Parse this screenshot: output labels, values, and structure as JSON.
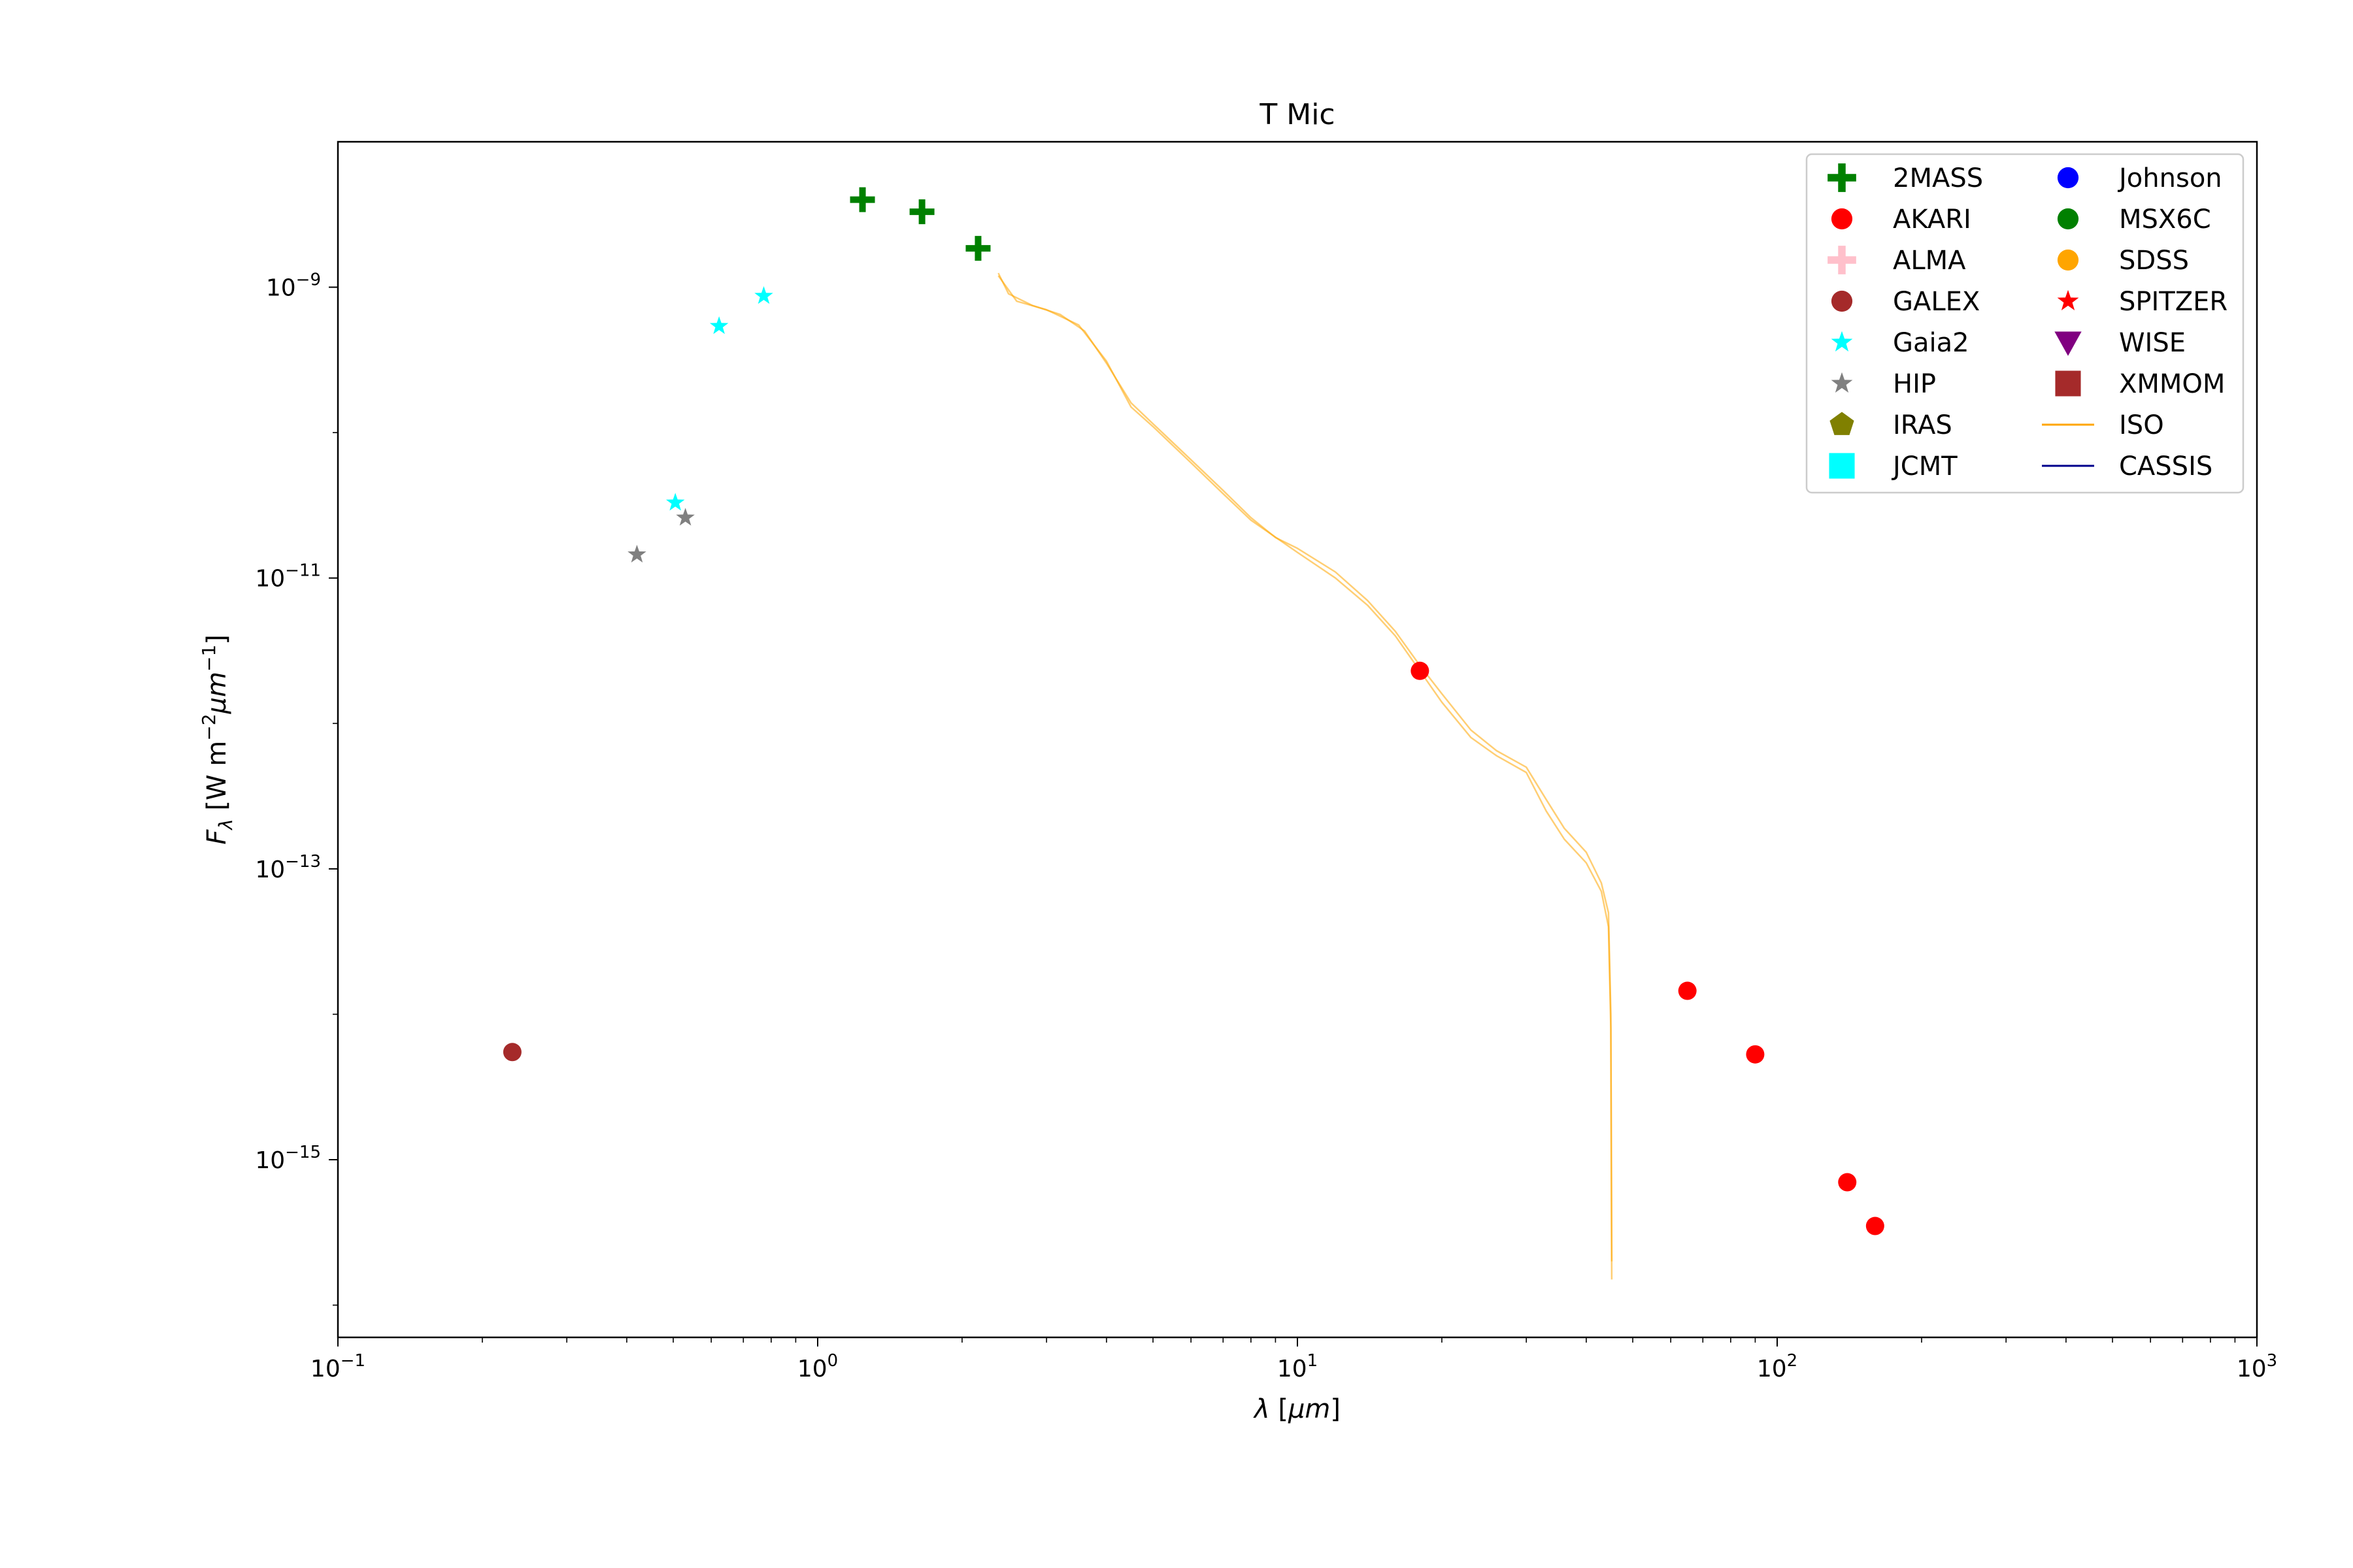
{
  "chart_data": {
    "type": "scatter",
    "title": "T Mic",
    "xlabel": "λ [μm]",
    "ylabel": "F_λ [W m^-2 μm^-1]",
    "xscale": "log",
    "yscale": "log",
    "xlim": [
      0.1,
      1000
    ],
    "ylim": [
      6e-17,
      1e-08
    ],
    "x_ticks": [
      {
        "value": 0.1,
        "base": "10",
        "exp": "−1"
      },
      {
        "value": 1,
        "base": "10",
        "exp": "0"
      },
      {
        "value": 10,
        "base": "10",
        "exp": "1"
      },
      {
        "value": 100,
        "base": "10",
        "exp": "2"
      },
      {
        "value": 1000,
        "base": "10",
        "exp": "3"
      }
    ],
    "y_ticks": [
      {
        "value": 1e-09,
        "base": "10",
        "exp": "−9"
      },
      {
        "value": 1e-11,
        "base": "10",
        "exp": "−11"
      },
      {
        "value": 1e-13,
        "base": "10",
        "exp": "−13"
      },
      {
        "value": 1e-15,
        "base": "10",
        "exp": "−15"
      }
    ],
    "grid": false,
    "legend_position": "top-right",
    "legend_columns": 2,
    "series": [
      {
        "name": "2MASS",
        "marker": "plus",
        "color": "#008000",
        "points": [
          [
            1.24,
            4e-09
          ],
          [
            1.65,
            3.3e-09
          ],
          [
            2.16,
            1.85e-09
          ]
        ]
      },
      {
        "name": "AKARI",
        "marker": "circle",
        "color": "#ff0000",
        "points": [
          [
            18,
            2.3e-12
          ],
          [
            65,
            1.45e-14
          ],
          [
            90,
            5.3e-15
          ],
          [
            140,
            7e-16
          ],
          [
            160,
            3.5e-16
          ]
        ]
      },
      {
        "name": "ALMA",
        "marker": "plus",
        "color": "#ffc0cb",
        "points": []
      },
      {
        "name": "GALEX",
        "marker": "circle",
        "color": "#a52a2a",
        "points": [
          [
            0.231,
            5.5e-15
          ]
        ]
      },
      {
        "name": "Gaia2",
        "marker": "star",
        "color": "#00ffff",
        "points": [
          [
            0.505,
            3.3e-11
          ],
          [
            0.623,
            5.4e-10
          ],
          [
            0.772,
            8.7e-10
          ]
        ]
      },
      {
        "name": "HIP",
        "marker": "star",
        "color": "#808080",
        "points": [
          [
            0.42,
            1.45e-11
          ],
          [
            0.53,
            2.6e-11
          ]
        ]
      },
      {
        "name": "IRAS",
        "marker": "pentagon",
        "color": "#808000",
        "points": []
      },
      {
        "name": "JCMT",
        "marker": "square",
        "color": "#00ffff",
        "points": []
      },
      {
        "name": "Johnson",
        "marker": "circle",
        "color": "#0000ff",
        "points": []
      },
      {
        "name": "MSX6C",
        "marker": "circle",
        "color": "#008000",
        "points": []
      },
      {
        "name": "SDSS",
        "marker": "circle",
        "color": "#ffa500",
        "points": []
      },
      {
        "name": "SPITZER",
        "marker": "star",
        "color": "#ff0000",
        "points": []
      },
      {
        "name": "WISE",
        "marker": "triangle-down",
        "color": "#800080",
        "points": []
      },
      {
        "name": "XMMOM",
        "marker": "square",
        "color": "#a52a2a",
        "points": []
      },
      {
        "name": "ISO",
        "marker": "line",
        "color": "#ffa500",
        "lines": [
          [
            [
              2.38,
              1.25e-09
            ],
            [
              2.5,
              9e-10
            ],
            [
              2.8,
              7.5e-10
            ],
            [
              3.2,
              6.5e-10
            ],
            [
              3.6,
              5e-10
            ],
            [
              4.0,
              3e-10
            ],
            [
              4.5,
              1.6e-10
            ],
            [
              5.0,
              1.15e-10
            ],
            [
              6.0,
              6.5e-11
            ],
            [
              7.0,
              4e-11
            ],
            [
              8.0,
              2.6e-11
            ],
            [
              9.0,
              1.9e-11
            ],
            [
              10.0,
              1.6e-11
            ],
            [
              12.0,
              1.1e-11
            ],
            [
              14.0,
              7e-12
            ],
            [
              16.0,
              4.3e-12
            ],
            [
              18.0,
              2.5e-12
            ],
            [
              20.0,
              1.6e-12
            ],
            [
              23.0,
              9e-13
            ],
            [
              26.0,
              6.5e-13
            ],
            [
              30.0,
              5e-13
            ],
            [
              33.0,
              3e-13
            ],
            [
              36.0,
              1.9e-13
            ],
            [
              40.0,
              1.3e-13
            ],
            [
              43.0,
              8e-14
            ],
            [
              44.5,
              5e-14
            ],
            [
              45.0,
              1e-14
            ],
            [
              45.2,
              1.5e-16
            ]
          ],
          [
            [
              2.38,
              1.2e-09
            ],
            [
              2.6,
              8e-10
            ],
            [
              3.0,
              7e-10
            ],
            [
              3.5,
              5.5e-10
            ],
            [
              4.0,
              3.1e-10
            ],
            [
              4.5,
              1.5e-10
            ],
            [
              5.0,
              1.1e-10
            ],
            [
              6.0,
              6.2e-11
            ],
            [
              7.0,
              3.8e-11
            ],
            [
              8.0,
              2.5e-11
            ],
            [
              10.0,
              1.5e-11
            ],
            [
              12.0,
              1e-11
            ],
            [
              14.0,
              6.5e-12
            ],
            [
              16.0,
              4e-12
            ],
            [
              18.0,
              2.3e-12
            ],
            [
              20.0,
              1.4e-12
            ],
            [
              23.0,
              8e-13
            ],
            [
              26.0,
              6e-13
            ],
            [
              30.0,
              4.6e-13
            ],
            [
              33.0,
              2.5e-13
            ],
            [
              36.0,
              1.6e-13
            ],
            [
              40.0,
              1.1e-13
            ],
            [
              43.0,
              7e-14
            ],
            [
              44.5,
              4e-14
            ],
            [
              45.0,
              8e-15
            ],
            [
              45.2,
              2e-16
            ]
          ]
        ]
      },
      {
        "name": "CASSIS",
        "marker": "line",
        "color": "#00008b",
        "lines": []
      }
    ]
  }
}
